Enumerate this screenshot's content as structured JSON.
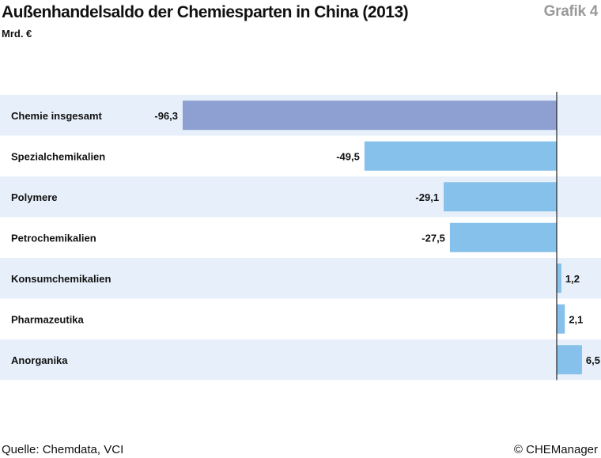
{
  "title": "Außenhandelsaldo der Chemiesparten in China (2013)",
  "unit": "Mrd. €",
  "tag": "Grafik 4",
  "source": "Quelle: Chemdata, VCI",
  "copyright": "© CHEManager",
  "colors": {
    "stripe": "#e7f0fa",
    "bar_total": "#8e9fd2",
    "bar": "#85c1ea",
    "axis": "#222222"
  },
  "chart_data": {
    "type": "bar",
    "orientation": "horizontal",
    "categories": [
      "Chemie insgesamt",
      "Spezialchemikalien",
      "Polymere",
      "Petrochemikalien",
      "Konsumchemikalien",
      "Pharmazeutika",
      "Anorganika"
    ],
    "values": [
      -96.3,
      -49.5,
      -29.1,
      -27.5,
      1.2,
      2.1,
      6.5
    ],
    "value_labels": [
      "-96,3",
      "-49,5",
      "-29,1",
      "-27,5",
      "1,2",
      "2,1",
      "6,5"
    ],
    "xlim": [
      -96.3,
      6.5
    ],
    "grid": false
  }
}
